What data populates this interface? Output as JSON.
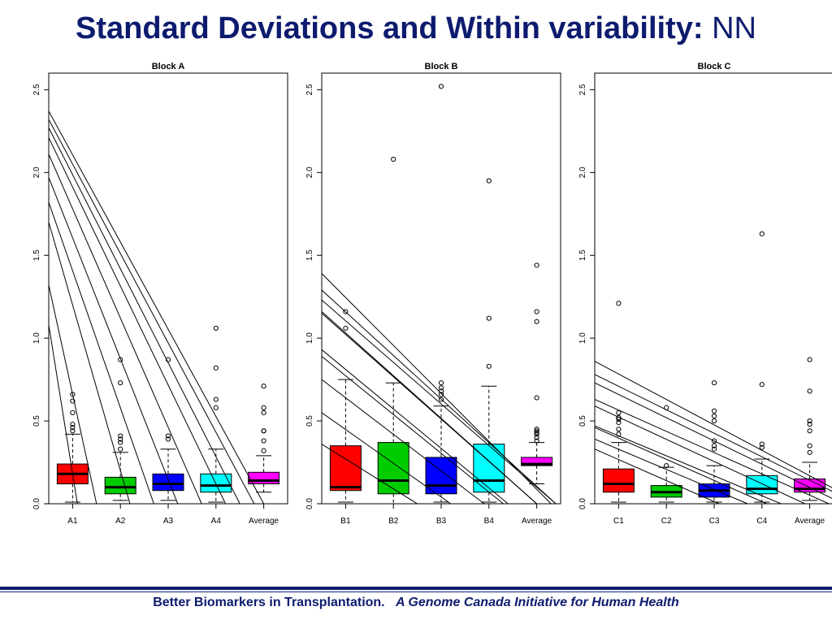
{
  "header": {
    "title_main": "Standard Deviations and Within variability:",
    "title_suffix": "NN"
  },
  "footer": {
    "left": "Better Biomarkers in Transplantation.",
    "right": "A Genome Canada Initiative for Human Health"
  },
  "colors": {
    "title": "#0d1b6e",
    "box_colors": [
      "#ff0000",
      "#00cc00",
      "#0000ff",
      "#00ffff",
      "#ff00ff"
    ]
  },
  "chart_data": [
    {
      "type": "box",
      "title": "Block A",
      "ylim": [
        0,
        2.6
      ],
      "yticks": [
        "0.0",
        "0.5",
        "1.0",
        "1.5",
        "2.0",
        "2.5"
      ],
      "categories": [
        "A1",
        "A2",
        "A3",
        "A4",
        "Average"
      ],
      "boxes": [
        {
          "whisker_low": 0.01,
          "q1": 0.12,
          "median": 0.18,
          "q3": 0.24,
          "whisker_high": 0.42,
          "outliers": [
            0.44,
            0.46,
            0.48,
            0.55,
            0.62,
            0.66
          ]
        },
        {
          "whisker_low": 0.02,
          "q1": 0.06,
          "median": 0.1,
          "q3": 0.16,
          "whisker_high": 0.31,
          "outliers": [
            0.33,
            0.37,
            0.39,
            0.41,
            0.73,
            0.87
          ]
        },
        {
          "whisker_low": 0.02,
          "q1": 0.08,
          "median": 0.12,
          "q3": 0.18,
          "whisker_high": 0.33,
          "outliers": [
            0.39,
            0.41,
            0.87
          ]
        },
        {
          "whisker_low": 0.01,
          "q1": 0.07,
          "median": 0.11,
          "q3": 0.18,
          "whisker_high": 0.33,
          "outliers": [
            0.58,
            0.63,
            0.82,
            1.06
          ]
        },
        {
          "whisker_low": 0.07,
          "q1": 0.12,
          "median": 0.14,
          "q3": 0.19,
          "whisker_high": 0.29,
          "outliers": [
            0.32,
            0.38,
            0.44,
            0.44,
            0.55,
            0.58,
            0.71
          ]
        }
      ],
      "lines": [
        [
          2.37,
          4.5
        ],
        [
          2.32,
          4.3
        ],
        [
          2.27,
          4.0
        ],
        [
          2.21,
          3.7
        ],
        [
          2.11,
          3.2
        ],
        [
          1.97,
          2.7
        ],
        [
          1.82,
          2.2
        ],
        [
          1.7,
          1.7
        ],
        [
          1.32,
          1.0
        ],
        [
          1.08,
          0.6
        ]
      ]
    },
    {
      "type": "box",
      "title": "Block B",
      "ylim": [
        0,
        2.6
      ],
      "yticks": [
        "0.0",
        "0.5",
        "1.0",
        "1.5",
        "2.0",
        "2.5"
      ],
      "categories": [
        "B1",
        "B2",
        "B3",
        "B4",
        "Average"
      ],
      "boxes": [
        {
          "whisker_low": 0.01,
          "q1": 0.08,
          "median": 0.1,
          "q3": 0.35,
          "whisker_high": 0.75,
          "outliers": [
            1.06,
            1.16
          ]
        },
        {
          "whisker_low": 0.0,
          "q1": 0.06,
          "median": 0.14,
          "q3": 0.37,
          "whisker_high": 0.73,
          "outliers": [
            2.08
          ]
        },
        {
          "whisker_low": 0.01,
          "q1": 0.06,
          "median": 0.11,
          "q3": 0.28,
          "whisker_high": 0.59,
          "outliers": [
            0.63,
            0.66,
            0.68,
            0.7,
            0.73,
            2.52
          ]
        },
        {
          "whisker_low": 0.01,
          "q1": 0.07,
          "median": 0.14,
          "q3": 0.36,
          "whisker_high": 0.71,
          "outliers": [
            0.83,
            1.12,
            1.95
          ]
        },
        {
          "whisker_low": 0.12,
          "q1": 0.23,
          "median": 0.24,
          "q3": 0.28,
          "whisker_high": 0.37,
          "outliers": [
            0.38,
            0.4,
            0.42,
            0.43,
            0.44,
            0.45,
            0.64,
            1.1,
            1.16,
            1.44
          ]
        }
      ],
      "lines": [
        [
          1.39,
          4.8
        ],
        [
          1.29,
          4.9
        ],
        [
          1.23,
          4.9
        ],
        [
          1.16,
          4.5
        ],
        [
          1.15,
          4.5
        ],
        [
          0.93,
          3.9
        ],
        [
          0.89,
          3.8
        ],
        [
          0.75,
          3.4
        ],
        [
          0.55,
          2.7
        ],
        [
          0.36,
          2.0
        ]
      ]
    },
    {
      "type": "box",
      "title": "Block C",
      "ylim": [
        0,
        2.6
      ],
      "yticks": [
        "0.0",
        "0.5",
        "1.0",
        "1.5",
        "2.0",
        "2.5"
      ],
      "categories": [
        "C1",
        "C2",
        "C3",
        "C4",
        "Average"
      ],
      "boxes": [
        {
          "whisker_low": 0.01,
          "q1": 0.07,
          "median": 0.12,
          "q3": 0.21,
          "whisker_high": 0.37,
          "outliers": [
            0.42,
            0.45,
            0.49,
            0.51,
            0.52,
            0.55,
            1.21
          ]
        },
        {
          "whisker_low": 0.01,
          "q1": 0.04,
          "median": 0.07,
          "q3": 0.11,
          "whisker_high": 0.22,
          "outliers": [
            0.23,
            0.58
          ]
        },
        {
          "whisker_low": 0.01,
          "q1": 0.04,
          "median": 0.08,
          "q3": 0.12,
          "whisker_high": 0.23,
          "outliers": [
            0.33,
            0.35,
            0.38,
            0.5,
            0.53,
            0.56,
            0.73
          ]
        },
        {
          "whisker_low": 0.01,
          "q1": 0.06,
          "median": 0.09,
          "q3": 0.17,
          "whisker_high": 0.27,
          "outliers": [
            0.34,
            0.36,
            0.72,
            1.63
          ]
        },
        {
          "whisker_low": 0.02,
          "q1": 0.07,
          "median": 0.09,
          "q3": 0.15,
          "whisker_high": 0.25,
          "outliers": [
            0.31,
            0.35,
            0.44,
            0.48,
            0.5,
            0.68,
            0.87
          ]
        }
      ],
      "lines": [
        [
          0.86,
          5.6
        ],
        [
          0.78,
          5.5
        ],
        [
          0.73,
          5.2
        ],
        [
          0.63,
          4.9
        ],
        [
          0.59,
          4.4
        ],
        [
          0.47,
          3.9
        ],
        [
          0.46,
          3.6
        ],
        [
          0.39,
          3.2
        ],
        [
          0.33,
          2.6
        ]
      ]
    }
  ]
}
